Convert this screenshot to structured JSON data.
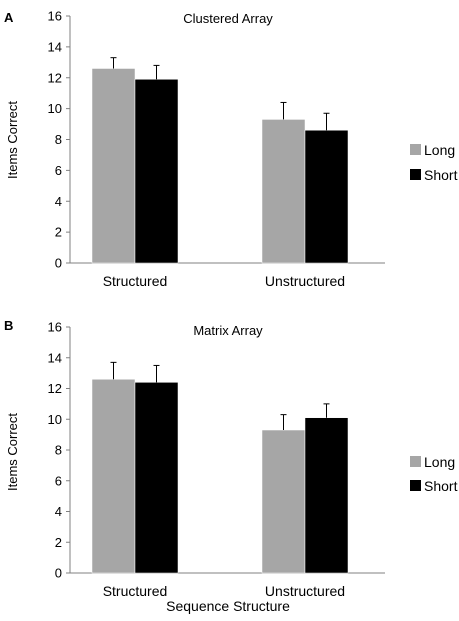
{
  "chart_data": [
    {
      "panel": "A",
      "type": "bar",
      "title": "Clustered Array",
      "ylabel": "Items Correct",
      "xlabel": "",
      "categories": [
        "Structured",
        "Unstructured"
      ],
      "series": [
        {
          "name": "Long",
          "values": [
            12.6,
            9.3
          ],
          "errors": [
            0.7,
            1.1
          ],
          "color": "#a6a6a6"
        },
        {
          "name": "Short",
          "values": [
            11.9,
            8.6
          ],
          "errors": [
            0.9,
            1.1
          ],
          "color": "#000000"
        }
      ],
      "ylim": [
        0,
        16
      ],
      "yticks": [
        0,
        2,
        4,
        6,
        8,
        10,
        12,
        14,
        16
      ],
      "grid": false,
      "legend_position": "right"
    },
    {
      "panel": "B",
      "type": "bar",
      "title": "Matrix Array",
      "ylabel": "Items Correct",
      "xlabel": "Sequence Structure",
      "categories": [
        "Structured",
        "Unstructured"
      ],
      "series": [
        {
          "name": "Long",
          "values": [
            12.6,
            9.3
          ],
          "errors": [
            1.1,
            1.0
          ],
          "color": "#a6a6a6"
        },
        {
          "name": "Short",
          "values": [
            12.4,
            10.1
          ],
          "errors": [
            1.1,
            0.9
          ],
          "color": "#000000"
        }
      ],
      "ylim": [
        0,
        16
      ],
      "yticks": [
        0,
        2,
        4,
        6,
        8,
        10,
        12,
        14,
        16
      ],
      "grid": false,
      "legend_position": "right"
    }
  ]
}
